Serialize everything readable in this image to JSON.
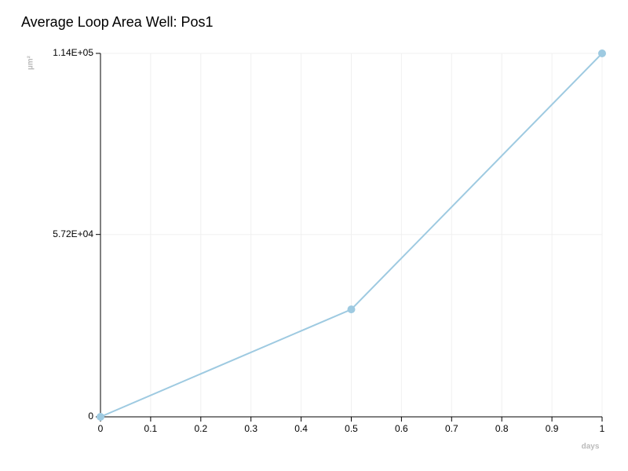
{
  "chart_data": {
    "type": "line",
    "title": "Average Loop Area Well: Pos1",
    "x_label": "days",
    "y_label": "µm²",
    "x": [
      0,
      0.5,
      1
    ],
    "series": [
      {
        "name": "Pos1",
        "color": "#9ecae1",
        "values": [
          0,
          33700,
          114000
        ]
      }
    ],
    "xlim": [
      0,
      1
    ],
    "xticks": [
      0,
      0.1,
      0.2,
      0.3,
      0.4,
      0.5,
      0.6,
      0.7,
      0.8,
      0.9,
      1
    ],
    "ylim": [
      0,
      114000
    ],
    "yticks": [
      0,
      {
        "value": 57200,
        "label": "5.72E+04"
      },
      {
        "value": 114000,
        "label": "1.14E+05"
      }
    ],
    "grid": true
  }
}
